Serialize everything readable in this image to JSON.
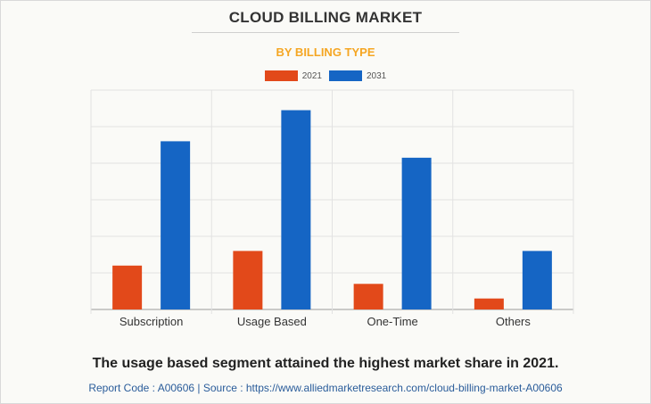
{
  "colors": {
    "series_2021": "#e2491a",
    "series_2031": "#1565c4"
  },
  "chart_data": {
    "type": "bar",
    "title": "CLOUD BILLING MARKET",
    "subtitle": "BY BILLING TYPE",
    "categories": [
      "Subscription",
      "Usage Based",
      "One-Time",
      "Others"
    ],
    "series": [
      {
        "name": "2021",
        "values": [
          1.2,
          1.6,
          0.7,
          0.3
        ]
      },
      {
        "name": "2031",
        "values": [
          4.6,
          5.45,
          4.15,
          1.6
        ]
      }
    ],
    "ylim": [
      0,
      6
    ],
    "grid": true,
    "legend": "top-center",
    "xlabel": "",
    "ylabel": ""
  },
  "caption": "The usage based segment attained the highest market share in 2021.",
  "source": "Report Code : A00606  |  Source : https://www.alliedmarketresearch.com/cloud-billing-market-A00606"
}
